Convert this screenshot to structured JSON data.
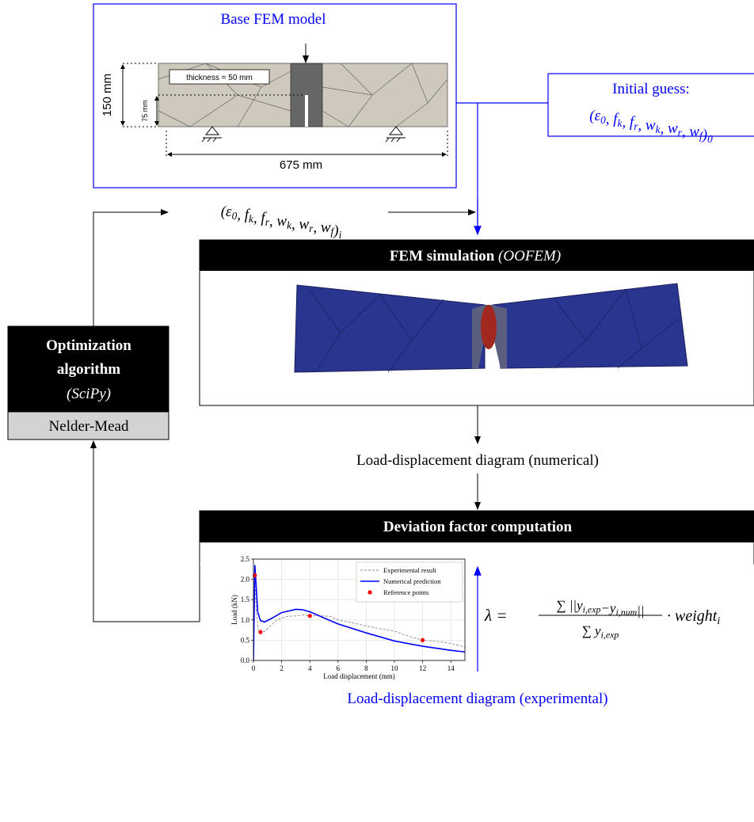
{
  "base_model": {
    "title": "Base FEM model",
    "height_label": "150 mm",
    "notch_label": "75 mm",
    "thickness_label": "thickness = 50 mm",
    "span_label": "675 mm"
  },
  "initial_guess": {
    "title": "Initial guess:",
    "params": [
      {
        "text": "(ε",
        "sub": "0"
      },
      {
        "text": ", f",
        "sub": "k"
      },
      {
        "text": ", f",
        "sub": "r"
      },
      {
        "text": ", w",
        "sub": "k"
      },
      {
        "text": ", w",
        "sub": "r"
      },
      {
        "text": ", w",
        "sub": "f"
      },
      {
        "text": ")",
        "sub": "0"
      }
    ]
  },
  "iteration_params": [
    {
      "text": "(ε",
      "sub": "0"
    },
    {
      "text": ", f",
      "sub": "k"
    },
    {
      "text": ", f",
      "sub": "r"
    },
    {
      "text": ", w",
      "sub": "k"
    },
    {
      "text": ", w",
      "sub": "r"
    },
    {
      "text": ", w",
      "sub": "f"
    },
    {
      "text": ")",
      "sub": "i"
    }
  ],
  "fem_simulation": {
    "title": "FEM simulation",
    "tool": "(OOFEM)"
  },
  "optimization": {
    "title_line1": "Optimization",
    "title_line2": "algorithm",
    "tool": "(SciPy)",
    "method": "Nelder-Mead"
  },
  "numerical_output": "Load-displacement diagram (numerical)",
  "deviation": {
    "title": "Deviation factor computation",
    "formula": {
      "lhs": "λ =",
      "numerator": [
        {
          "text": "∑ ||y",
          "sub": "i,exp"
        },
        {
          "text": "−y",
          "sub": "i,num"
        },
        {
          "text": "||"
        }
      ],
      "denominator": [
        {
          "text": "∑ y",
          "sub": "i,exp"
        }
      ],
      "factor": [
        {
          "text": "· weight",
          "sub": "i"
        }
      ]
    }
  },
  "experimental_input": "Load-displacement diagram (experimental)",
  "chart_data": {
    "type": "line",
    "xlabel": "Load displacement (mm)",
    "ylabel": "Load (kN)",
    "xlim": [
      0,
      15
    ],
    "ylim": [
      0,
      2.5
    ],
    "xticks": [
      0,
      2,
      4,
      6,
      8,
      10,
      12,
      14
    ],
    "yticks": [
      {
        "value": 0,
        "label": "0.0"
      },
      {
        "value": 0.5,
        "label": "0.5"
      },
      {
        "value": 1,
        "label": "1.0"
      },
      {
        "value": 1.5,
        "label": "1.5"
      },
      {
        "value": 2,
        "label": "2.0"
      },
      {
        "value": 2.5,
        "label": "2.5"
      }
    ],
    "grid": true,
    "series": [
      {
        "name": "Experimental result",
        "color": "#888888",
        "style": "dashed",
        "x": [
          0,
          0.1,
          0.2,
          0.35,
          0.5,
          0.8,
          1.2,
          1.6,
          2,
          2.5,
          3,
          3.5,
          4,
          4.5,
          5,
          5.5,
          6,
          7,
          8,
          9,
          10,
          11,
          12,
          13,
          14,
          15
        ],
        "values": [
          0,
          2.1,
          1.2,
          0.75,
          0.68,
          0.72,
          0.85,
          0.98,
          1.05,
          1.09,
          1.1,
          1.12,
          1.11,
          1.1,
          1.1,
          1.08,
          1.0,
          0.93,
          0.85,
          0.78,
          0.72,
          0.6,
          0.5,
          0.47,
          0.42,
          0.33
        ]
      },
      {
        "name": "Numerical prediction",
        "color": "#0000ff",
        "style": "solid",
        "x": [
          0,
          0.1,
          0.2,
          0.3,
          0.5,
          0.8,
          1.2,
          2,
          3,
          3.5,
          4,
          5,
          6,
          8,
          10,
          12,
          14,
          15
        ],
        "values": [
          0,
          2.35,
          1.8,
          1.2,
          0.98,
          0.95,
          1.02,
          1.18,
          1.26,
          1.25,
          1.2,
          1.05,
          0.9,
          0.68,
          0.48,
          0.35,
          0.25,
          0.21
        ]
      },
      {
        "name": "Reference points",
        "color": "#ff0000",
        "style": "points",
        "x": [
          0.1,
          0.5,
          4,
          12
        ],
        "values": [
          2.1,
          0.7,
          1.1,
          0.5
        ]
      }
    ]
  }
}
